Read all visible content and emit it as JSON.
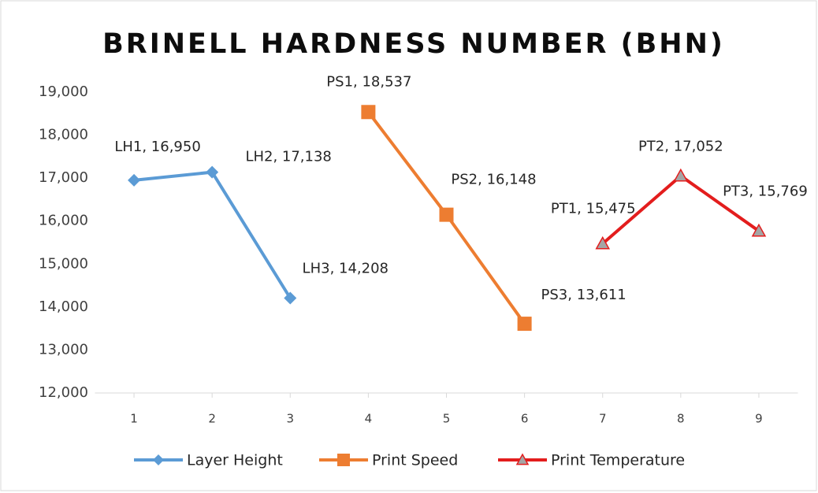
{
  "chart_data": {
    "type": "line",
    "title": "BRINELL HARDNESS NUMBER (BHN)",
    "xlim": [
      0.5,
      9.5
    ],
    "xticks": [
      1,
      2,
      3,
      4,
      5,
      6,
      7,
      8,
      9
    ],
    "ylim": [
      12000,
      19000
    ],
    "yticks": [
      {
        "value": 12000,
        "label": "12,000"
      },
      {
        "value": 13000,
        "label": "13,000"
      },
      {
        "value": 14000,
        "label": "14,000"
      },
      {
        "value": 15000,
        "label": "15,000"
      },
      {
        "value": 16000,
        "label": "16,000"
      },
      {
        "value": 17000,
        "label": "17,000"
      },
      {
        "value": 18000,
        "label": "18,000"
      },
      {
        "value": 19000,
        "label": "19,000"
      }
    ],
    "grid": false,
    "legend": "bottom",
    "series": [
      {
        "name": "Layer Height",
        "color": "#5b9bd5",
        "marker": "diamond",
        "x": [
          1,
          2,
          3
        ],
        "values": [
          16950,
          17138,
          14208
        ],
        "value_labels": [
          "LH1, 16,950",
          "LH2, 17,138",
          "LH3, 14,208"
        ]
      },
      {
        "name": "Print Speed",
        "color": "#ed7d31",
        "marker": "square",
        "x": [
          4,
          5,
          6
        ],
        "values": [
          18537,
          16148,
          13611
        ],
        "value_labels": [
          "PS1, 18,537",
          "PS2, 16,148",
          "PS3, 13,611"
        ]
      },
      {
        "name": "Print Temperature",
        "color": "#e31d1d",
        "marker": "triangle",
        "marker_color": "#a5a5a5",
        "x": [
          7,
          8,
          9
        ],
        "values": [
          15475,
          17052,
          15769
        ],
        "value_labels": [
          "PT1, 15,475",
          "PT2, 17,052",
          "PT3, 15,769"
        ]
      }
    ]
  }
}
